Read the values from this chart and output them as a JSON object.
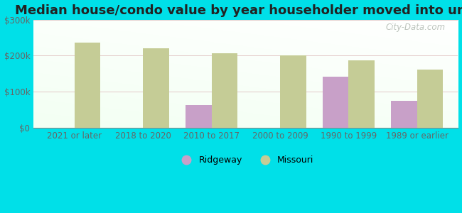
{
  "title": "Median house/condo value by year householder moved into unit",
  "categories": [
    "2021 or later",
    "2018 to 2020",
    "2010 to 2017",
    "2000 to 2009",
    "1990 to 1999",
    "1989 or earlier"
  ],
  "ridgeway_values": [
    null,
    null,
    62000,
    null,
    142000,
    75000
  ],
  "missouri_values": [
    237000,
    220000,
    207000,
    200000,
    188000,
    162000
  ],
  "ridgeway_color": "#c8a0c8",
  "missouri_color": "#c5cc96",
  "background_grad_topleft": "#e8fce8",
  "background_grad_topright": "#f5fffa",
  "outer_background": "#00e0e8",
  "ylim": [
    0,
    300000
  ],
  "yticks": [
    0,
    100000,
    200000,
    300000
  ],
  "ytick_labels": [
    "$0",
    "$100k",
    "$200k",
    "$300k"
  ],
  "bar_width": 0.38,
  "legend_labels": [
    "Ridgeway",
    "Missouri"
  ],
  "watermark": "City-Data.com",
  "title_fontsize": 13,
  "tick_fontsize": 8.5,
  "legend_fontsize": 9
}
